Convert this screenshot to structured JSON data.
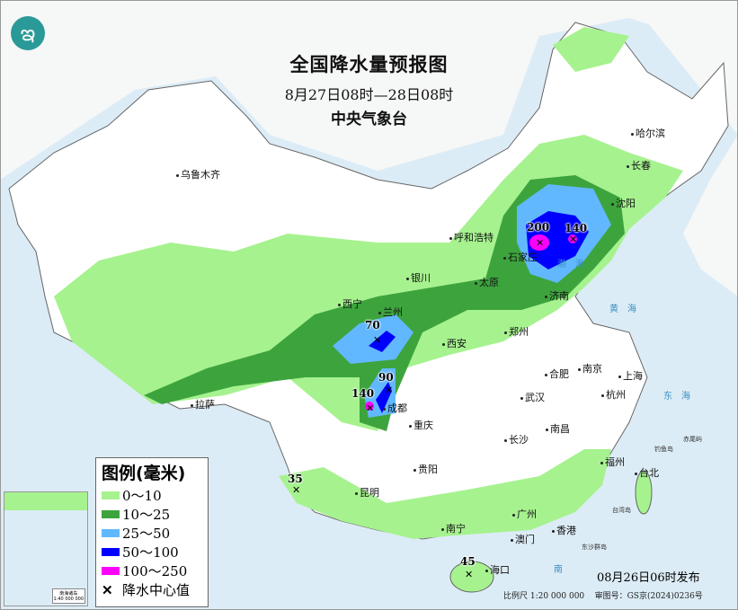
{
  "header": {
    "title": "全国降水量预报图",
    "period": "8月27日08时—28日08时",
    "issuer": "中央气象台"
  },
  "colors": {
    "sea": "#dcecf6",
    "land": "#ffffff",
    "c0_10": "#a6f28f",
    "c10_25": "#3da43d",
    "c25_50": "#62b8ff",
    "c50_100": "#0000fe",
    "c100_250": "#fa00fa"
  },
  "legend": {
    "title": "图例(毫米)",
    "items": [
      {
        "label": "0～10",
        "color": "#a6f28f"
      },
      {
        "label": "10～25",
        "color": "#3da43d"
      },
      {
        "label": "25～50",
        "color": "#62b8ff"
      },
      {
        "label": "50～100",
        "color": "#0000fe"
      },
      {
        "label": "100～250",
        "color": "#fa00fa"
      }
    ],
    "center_label": "降水中心值",
    "center_icon": "x-mark-icon"
  },
  "cities": [
    "乌鲁木齐",
    "哈尔滨",
    "长春",
    "沈阳",
    "呼和浩特",
    "银川",
    "太原",
    "石家庄",
    "济南",
    "西宁",
    "兰州",
    "西安",
    "郑州",
    "合肥",
    "南京",
    "上海",
    "杭州",
    "武汉",
    "成都",
    "重庆",
    "拉萨",
    "长沙",
    "南昌",
    "贵阳",
    "福州",
    "台北",
    "昆明",
    "南宁",
    "广州",
    "澳门",
    "香港",
    "海口"
  ],
  "seas": [
    "渤海",
    "黄海",
    "东海",
    "南"
  ],
  "islands": [
    "台湾岛",
    "钓鱼岛",
    "赤尾屿",
    "东沙群岛"
  ],
  "rain_centers": [
    "200",
    "140",
    "70",
    "90",
    "140",
    "35",
    "45"
  ],
  "inset": {
    "caption": "南海诸岛",
    "scale": "1:40 000 000"
  },
  "footer": {
    "issued": "08月26日06时发布",
    "scale": "比例尺 1:20 000 000",
    "review": "审图号：GS京(2024)0236号"
  }
}
